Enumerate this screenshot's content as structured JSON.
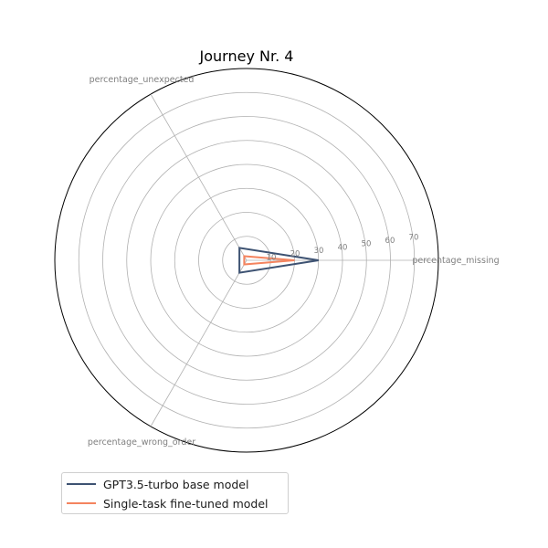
{
  "chart_data": {
    "type": "radar",
    "title": "Journey Nr. 4",
    "axes": [
      "percentage_missing",
      "percentage_unexpected",
      "percentage_wrong_order"
    ],
    "radial_ticks": [
      10,
      20,
      30,
      40,
      50,
      60,
      70
    ],
    "rlim": [
      0,
      80
    ],
    "grid": true,
    "legend_position": "bottom-left",
    "series": [
      {
        "name": "GPT3.5-turbo base model",
        "values": [
          30,
          6,
          6
        ],
        "color": "#3d5272"
      },
      {
        "name": "Single-task fine-tuned model",
        "values": [
          20,
          2,
          2
        ],
        "color": "#f4845f"
      }
    ]
  }
}
